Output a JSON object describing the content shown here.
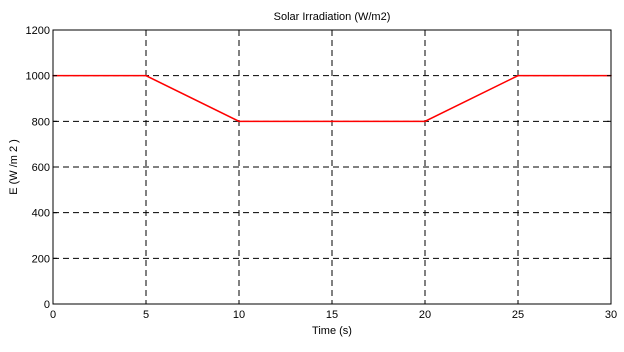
{
  "chart_data": {
    "type": "line",
    "title": "Solar Irradiation (W/m2)",
    "xlabel": "Time (s)",
    "ylabel": "E  (W /m 2 )",
    "xlim": [
      0,
      30
    ],
    "ylim": [
      0,
      1200
    ],
    "xticks": [
      0,
      5,
      10,
      15,
      20,
      25,
      30
    ],
    "yticks": [
      0,
      200,
      400,
      600,
      800,
      1000,
      1200
    ],
    "grid": true,
    "series": [
      {
        "color": "#ff0000",
        "x": [
          0,
          5,
          10,
          20,
          25,
          30
        ],
        "y": [
          1000,
          1000,
          800,
          800,
          1000,
          1000
        ]
      }
    ]
  }
}
